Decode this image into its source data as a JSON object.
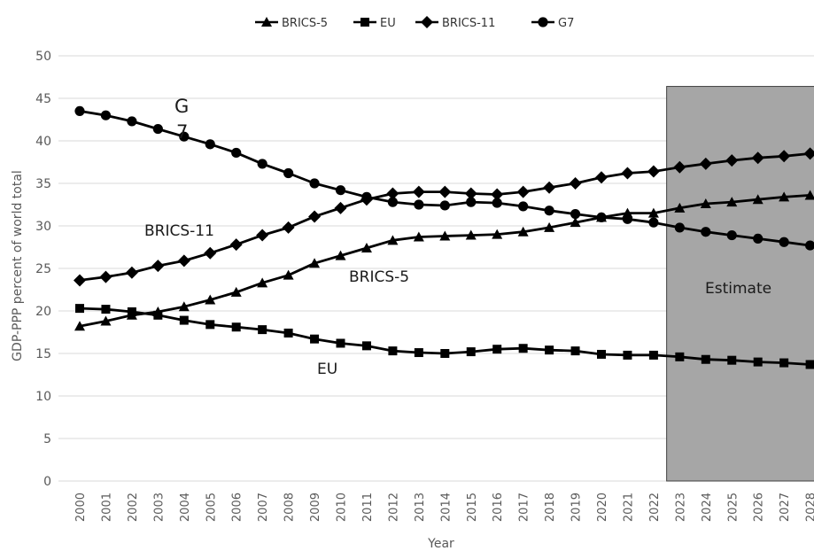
{
  "chart_data": {
    "type": "line",
    "title": "",
    "xlabel": "Year",
    "ylabel": "GDP-PPP percent of world total",
    "ylim": [
      0,
      50
    ],
    "y_ticks": [
      "0",
      "5",
      "10",
      "15",
      "20",
      "25",
      "30",
      "35",
      "40",
      "45",
      "50"
    ],
    "grid": true,
    "legend_position": "top",
    "x": [
      "2000",
      "2001",
      "2002",
      "2003",
      "2004",
      "2005",
      "2006",
      "2007",
      "2008",
      "2009",
      "2010",
      "2011",
      "2012",
      "2013",
      "2014",
      "2015",
      "2016",
      "2017",
      "2018",
      "2019",
      "2020",
      "2021",
      "2022",
      "2023",
      "2024",
      "2025",
      "2026",
      "2027",
      "2028"
    ],
    "x_tick_labels": [
      "2000",
      "2001",
      "2002",
      "2003",
      "2004",
      "2005",
      "2006",
      "2007",
      "2008",
      "2009",
      "2010",
      "2011",
      "2012",
      "2013",
      "2014",
      "2015",
      "2016",
      "2017",
      "2018",
      "2019",
      "2020",
      "2021",
      "2022",
      "2023",
      "2024",
      "2025",
      "2026",
      "2027",
      "2028"
    ],
    "series": [
      {
        "name": "BRICS-5",
        "marker": "triangle",
        "color": "#000000",
        "values": [
          18.2,
          18.8,
          19.5,
          19.9,
          20.5,
          21.3,
          22.2,
          23.3,
          24.2,
          25.6,
          26.5,
          27.4,
          28.3,
          28.7,
          28.8,
          28.9,
          29.0,
          29.3,
          29.8,
          30.4,
          31.0,
          31.5,
          31.5,
          32.1,
          32.6,
          32.8,
          33.1,
          33.4,
          33.6
        ]
      },
      {
        "name": "EU",
        "marker": "square",
        "color": "#000000",
        "values": [
          20.3,
          20.2,
          19.9,
          19.5,
          18.9,
          18.4,
          18.1,
          17.8,
          17.4,
          16.7,
          16.2,
          15.9,
          15.3,
          15.1,
          15.0,
          15.2,
          15.5,
          15.6,
          15.4,
          15.3,
          14.9,
          14.8,
          14.8,
          14.6,
          14.3,
          14.2,
          14.0,
          13.9,
          13.7
        ]
      },
      {
        "name": "BRICS-11",
        "marker": "diamond",
        "color": "#000000",
        "values": [
          23.6,
          24.0,
          24.5,
          25.3,
          25.9,
          26.8,
          27.8,
          28.9,
          29.8,
          31.1,
          32.1,
          33.1,
          33.8,
          34.0,
          34.0,
          33.8,
          33.7,
          34.0,
          34.5,
          35.0,
          35.7,
          36.2,
          36.4,
          36.9,
          37.3,
          37.7,
          38.0,
          38.2,
          38.5
        ]
      },
      {
        "name": "G7",
        "marker": "circle",
        "color": "#000000",
        "values": [
          43.5,
          43.0,
          42.3,
          41.4,
          40.5,
          39.6,
          38.6,
          37.3,
          36.2,
          35.0,
          34.2,
          33.4,
          32.8,
          32.5,
          32.4,
          32.8,
          32.7,
          32.3,
          31.8,
          31.4,
          31.0,
          30.8,
          30.4,
          29.8,
          29.3,
          28.9,
          28.5,
          28.1,
          27.7
        ]
      }
    ],
    "annotations": {
      "g7": "G 7",
      "g7_line1": "G",
      "g7_line2": "7",
      "brics11": "BRICS-11",
      "brics5": "BRICS-5",
      "eu": "EU",
      "estimate": "Estimate"
    },
    "shaded_region": {
      "from": "2023",
      "to": "2028",
      "label": "Estimate",
      "color": "#a6a6a6"
    },
    "gridline_color": "#d9d9d9"
  }
}
